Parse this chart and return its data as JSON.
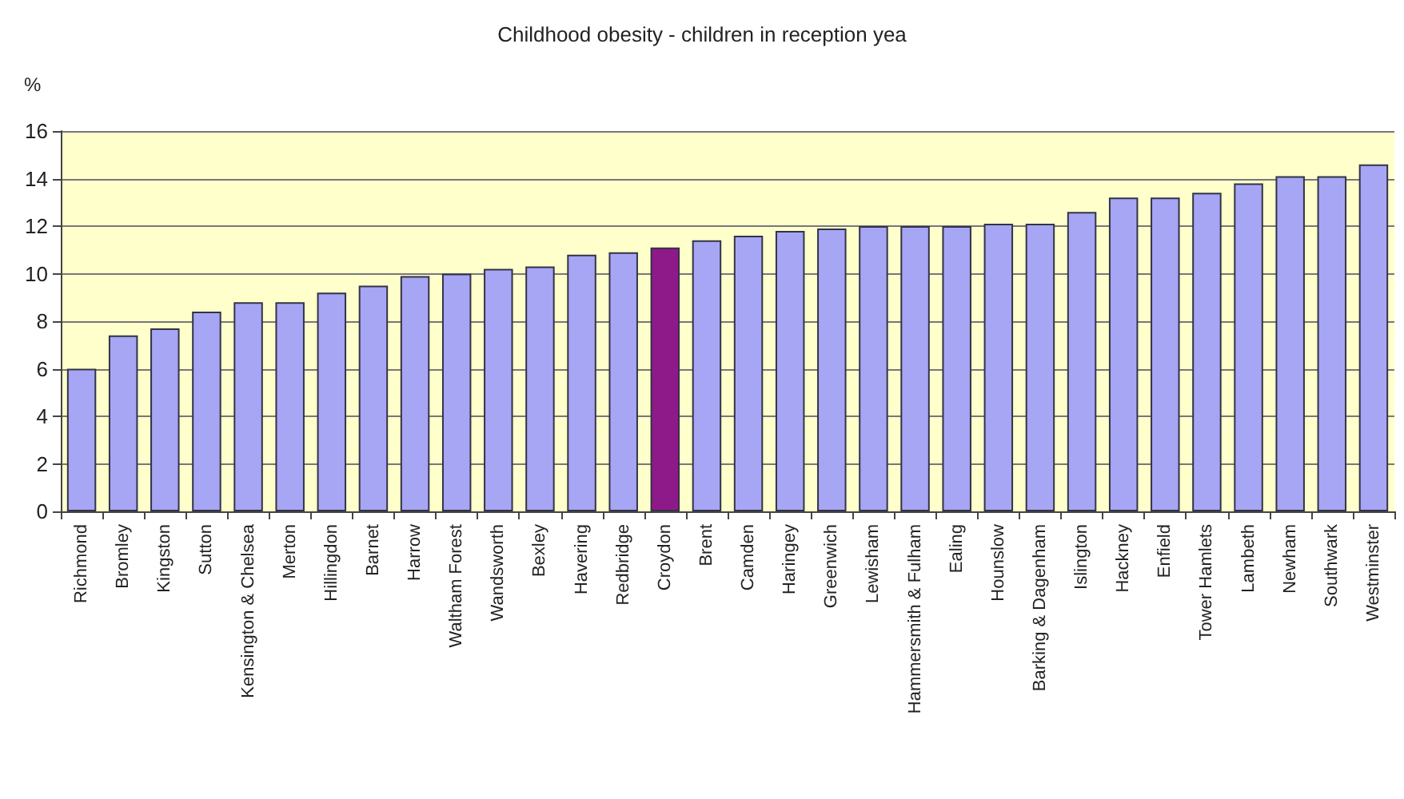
{
  "chart_data": {
    "type": "bar",
    "title": "Childhood obesity - children in reception yea",
    "ylabel": "%",
    "categories": [
      "Richmond",
      "Bromley",
      "Kingston",
      "Sutton",
      "Kensington & Chelsea",
      "Merton",
      "Hillingdon",
      "Barnet",
      "Harrow",
      "Waltham Forest",
      "Wandsworth",
      "Bexley",
      "Havering",
      "Redbridge",
      "Croydon",
      "Brent",
      "Camden",
      "Haringey",
      "Greenwich",
      "Lewisham",
      "Hammersmith & Fulham",
      "Ealing",
      "Hounslow",
      "Barking & Dagenham",
      "Islington",
      "Hackney",
      "Enfield",
      "Tower Hamlets",
      "Lambeth",
      "Newham",
      "Southwark",
      "Westminster"
    ],
    "values": [
      6.0,
      7.4,
      7.7,
      8.4,
      8.8,
      8.8,
      9.2,
      9.5,
      9.9,
      10.0,
      10.2,
      10.3,
      10.8,
      10.9,
      11.1,
      11.4,
      11.6,
      11.8,
      11.9,
      12.0,
      12.0,
      12.0,
      12.1,
      12.1,
      12.6,
      13.2,
      13.2,
      13.4,
      13.8,
      14.1,
      14.1,
      14.6
    ],
    "colors": [
      "#a6a6f5",
      "#a6a6f5",
      "#a6a6f5",
      "#a6a6f5",
      "#a6a6f5",
      "#a6a6f5",
      "#a6a6f5",
      "#a6a6f5",
      "#a6a6f5",
      "#a6a6f5",
      "#a6a6f5",
      "#a6a6f5",
      "#a6a6f5",
      "#a6a6f5",
      "#8e1a8a",
      "#a6a6f5",
      "#a6a6f5",
      "#a6a6f5",
      "#a6a6f5",
      "#a6a6f5",
      "#a6a6f5",
      "#a6a6f5",
      "#a6a6f5",
      "#a6a6f5",
      "#a6a6f5",
      "#a6a6f5",
      "#a6a6f5",
      "#a6a6f5",
      "#a6a6f5",
      "#a6a6f5",
      "#a6a6f5",
      "#a6a6f5"
    ],
    "ylim": [
      0,
      16
    ],
    "yticks": [
      0,
      2,
      4,
      6,
      8,
      10,
      12,
      14,
      16
    ],
    "grid": "y"
  }
}
